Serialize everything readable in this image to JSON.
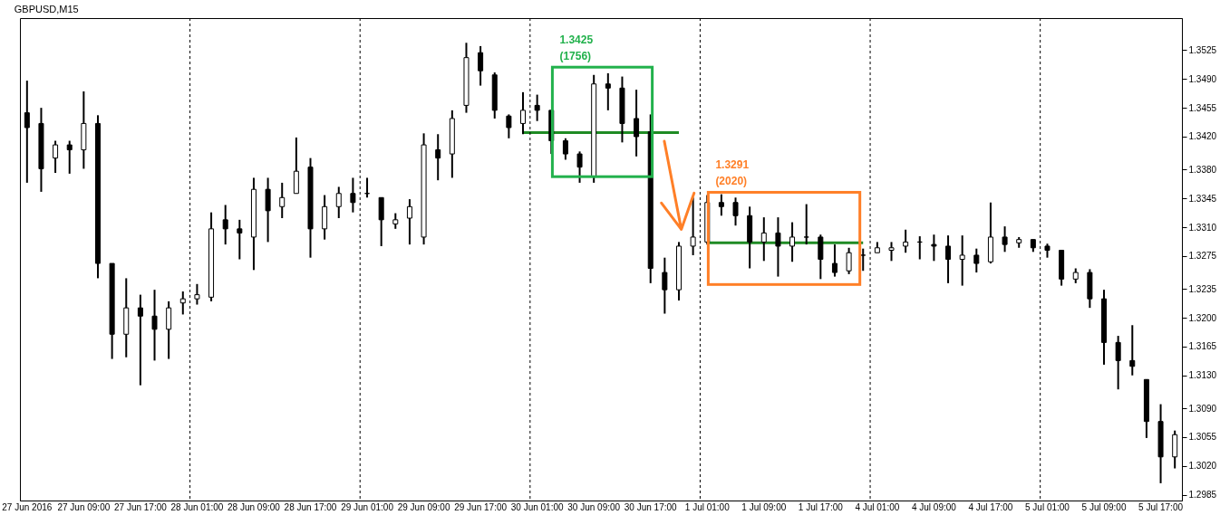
{
  "chart_data": {
    "type": "candlestick",
    "title": "GBPUSD,M15",
    "color": "#000000",
    "categories": [
      "27 Jun 2016",
      null,
      null,
      null,
      "27 Jun 09:00",
      null,
      null,
      null,
      "27 Jun 17:00",
      null,
      null,
      null,
      "28 Jun 01:00",
      null,
      null,
      null,
      "28 Jun 09:00",
      null,
      null,
      null,
      "28 Jun 17:00",
      null,
      null,
      null,
      "29 Jun 01:00",
      null,
      null,
      null,
      "29 Jun 09:00",
      null,
      null,
      null,
      "29 Jun 17:00",
      null,
      null,
      null,
      "30 Jun 01:00",
      null,
      null,
      null,
      "30 Jun 09:00",
      null,
      null,
      null,
      "30 Jun 17:00",
      null,
      null,
      null,
      "1 Jul 01:00",
      null,
      null,
      null,
      "1 Jul 09:00",
      null,
      null,
      null,
      "1 Jul 17:00",
      null,
      null,
      null,
      "4 Jul 01:00",
      null,
      null,
      null,
      "4 Jul 09:00",
      null,
      null,
      null,
      "4 Jul 17:00",
      null,
      null,
      null,
      "5 Jul 01:00",
      null,
      null,
      null,
      "5 Jul 09:00",
      null,
      null,
      null,
      "5 Jul 17:00",
      null
    ],
    "ohlc": [
      [
        1.3449,
        1.3488,
        1.3364,
        1.3431
      ],
      [
        1.3436,
        1.3455,
        1.3353,
        1.3381
      ],
      [
        1.3394,
        1.3415,
        1.3376,
        1.341
      ],
      [
        1.341,
        1.3415,
        1.3375,
        1.3404
      ],
      [
        1.3404,
        1.3475,
        1.3381,
        1.3436
      ],
      [
        1.3436,
        1.3446,
        1.3248,
        1.3266
      ],
      [
        1.3266,
        1.3266,
        1.315,
        1.318
      ],
      [
        1.318,
        1.3248,
        1.3152,
        1.3212
      ],
      [
        1.3212,
        1.3228,
        1.3118,
        1.3202
      ],
      [
        1.3202,
        1.3234,
        1.3148,
        1.3186
      ],
      [
        1.3186,
        1.322,
        1.315,
        1.3212
      ],
      [
        1.3218,
        1.3232,
        1.3204,
        1.3223
      ],
      [
        1.3223,
        1.3241,
        1.3216,
        1.3228
      ],
      [
        1.3225,
        1.3328,
        1.322,
        1.3308
      ],
      [
        1.3319,
        1.3337,
        1.3289,
        1.3308
      ],
      [
        1.3308,
        1.3319,
        1.3271,
        1.3303
      ],
      [
        1.3298,
        1.337,
        1.3258,
        1.3356
      ],
      [
        1.3356,
        1.337,
        1.3292,
        1.333
      ],
      [
        1.3335,
        1.3364,
        1.3321,
        1.3346
      ],
      [
        1.3351,
        1.3419,
        1.3351,
        1.3378
      ],
      [
        1.3383,
        1.3394,
        1.3273,
        1.3308
      ],
      [
        1.3308,
        1.3349,
        1.3295,
        1.3335
      ],
      [
        1.3335,
        1.3359,
        1.3321,
        1.3351
      ],
      [
        1.3351,
        1.337,
        1.3328,
        1.334
      ],
      [
        1.3351,
        1.337,
        1.3346,
        1.3351
      ],
      [
        1.3346,
        1.3346,
        1.3287,
        1.3319
      ],
      [
        1.3314,
        1.3327,
        1.3308,
        1.3319
      ],
      [
        1.3321,
        1.3344,
        1.3289,
        1.3335
      ],
      [
        1.3298,
        1.3424,
        1.3289,
        1.341
      ],
      [
        1.3404,
        1.3423,
        1.3367,
        1.3394
      ],
      [
        1.3399,
        1.3452,
        1.337,
        1.3442
      ],
      [
        1.3458,
        1.3534,
        1.3449,
        1.3516
      ],
      [
        1.3522,
        1.353,
        1.3482,
        1.35
      ],
      [
        1.3495,
        1.3498,
        1.3442,
        1.3452
      ],
      [
        1.3445,
        1.3447,
        1.3418,
        1.3431
      ],
      [
        1.3436,
        1.3474,
        1.3423,
        1.3452
      ],
      [
        1.3458,
        1.3471,
        1.3439,
        1.3452
      ],
      [
        1.3452,
        1.3452,
        1.3399,
        1.3415
      ],
      [
        1.3415,
        1.3418,
        1.3392,
        1.3399
      ],
      [
        1.3399,
        1.3402,
        1.3364,
        1.3383
      ],
      [
        1.3372,
        1.3495,
        1.3364,
        1.3484
      ],
      [
        1.3484,
        1.3497,
        1.3452,
        1.3479
      ],
      [
        1.3479,
        1.3493,
        1.3413,
        1.3436
      ],
      [
        1.3442,
        1.3477,
        1.3396,
        1.342
      ],
      [
        1.3426,
        1.3447,
        1.3242,
        1.326
      ],
      [
        1.3255,
        1.3273,
        1.3205,
        1.3234
      ],
      [
        1.3234,
        1.3292,
        1.3221,
        1.3287
      ],
      [
        1.3287,
        1.3346,
        1.3276,
        1.3298
      ],
      [
        1.3292,
        1.3349,
        1.3289,
        1.334
      ],
      [
        1.334,
        1.335,
        1.3324,
        1.3335
      ],
      [
        1.334,
        1.3346,
        1.3312,
        1.3324
      ],
      [
        1.3324,
        1.3335,
        1.326,
        1.3292
      ],
      [
        1.3292,
        1.3322,
        1.3269,
        1.3303
      ],
      [
        1.3303,
        1.3322,
        1.325,
        1.3287
      ],
      [
        1.3287,
        1.3316,
        1.3268,
        1.3298
      ],
      [
        1.3298,
        1.3338,
        1.3289,
        1.3298
      ],
      [
        1.3298,
        1.3301,
        1.3247,
        1.3271
      ],
      [
        1.3266,
        1.3289,
        1.325,
        1.3255
      ],
      [
        1.3257,
        1.3285,
        1.3253,
        1.3279
      ],
      [
        1.3276,
        1.3284,
        1.3257,
        1.3276
      ],
      [
        1.3279,
        1.3292,
        1.3279,
        1.3285
      ],
      [
        1.3282,
        1.3292,
        1.3269,
        1.3285
      ],
      [
        1.3287,
        1.3307,
        1.3279,
        1.3292
      ],
      [
        1.3292,
        1.3299,
        1.3271,
        1.3292
      ],
      [
        1.3289,
        1.3301,
        1.3269,
        1.3287
      ],
      [
        1.3287,
        1.33,
        1.3242,
        1.3271
      ],
      [
        1.3271,
        1.33,
        1.3239,
        1.3276
      ],
      [
        1.3276,
        1.3284,
        1.3255,
        1.3266
      ],
      [
        1.3268,
        1.334,
        1.3266,
        1.3298
      ],
      [
        1.3298,
        1.3311,
        1.328,
        1.3289
      ],
      [
        1.3291,
        1.3298,
        1.3285,
        1.3295
      ],
      [
        1.3295,
        1.3295,
        1.328,
        1.3285
      ],
      [
        1.3287,
        1.329,
        1.3273,
        1.3282
      ],
      [
        1.3282,
        1.3282,
        1.3239,
        1.3247
      ],
      [
        1.3247,
        1.326,
        1.3242,
        1.3255
      ],
      [
        1.3255,
        1.3259,
        1.3212,
        1.3223
      ],
      [
        1.3223,
        1.3234,
        1.3143,
        1.317
      ],
      [
        1.317,
        1.3178,
        1.3113,
        1.3148
      ],
      [
        1.3148,
        1.3191,
        1.313,
        1.3141
      ],
      [
        1.3125,
        1.3125,
        1.3054,
        1.3074
      ],
      [
        1.3074,
        1.3095,
        1.2999,
        1.3031
      ],
      [
        1.3031,
        1.3063,
        1.3017,
        1.3058
      ]
    ],
    "series": [
      {
        "type": "line",
        "color": "#1f8b24",
        "values": [
          null,
          null,
          null,
          null,
          null,
          null,
          null,
          null,
          null,
          null,
          null,
          null,
          null,
          null,
          null,
          null,
          null,
          null,
          null,
          null,
          null,
          null,
          null,
          null,
          null,
          null,
          null,
          null,
          null,
          null,
          null,
          null,
          null,
          null,
          null,
          1.3425,
          1.3425,
          1.3425,
          1.3425,
          1.3425,
          1.3425,
          1.3425,
          1.3425,
          1.3425,
          1.3425,
          1.3425,
          1.3425,
          null,
          null,
          null,
          null,
          null,
          null,
          null,
          null,
          null,
          null,
          null,
          null,
          null,
          null,
          null,
          null,
          null,
          null,
          null,
          null,
          null,
          null,
          null,
          null,
          null,
          null,
          null,
          null,
          null,
          null,
          null,
          null,
          null,
          null,
          null
        ]
      },
      {
        "type": "line",
        "color": "#1f8b24",
        "values": [
          null,
          null,
          null,
          null,
          null,
          null,
          null,
          null,
          null,
          null,
          null,
          null,
          null,
          null,
          null,
          null,
          null,
          null,
          null,
          null,
          null,
          null,
          null,
          null,
          null,
          null,
          null,
          null,
          null,
          null,
          null,
          null,
          null,
          null,
          null,
          null,
          null,
          null,
          null,
          null,
          null,
          null,
          null,
          null,
          null,
          null,
          null,
          null,
          1.3291,
          1.3291,
          1.3291,
          1.3291,
          1.3291,
          1.3291,
          1.3291,
          1.3291,
          1.3291,
          1.3291,
          1.3291,
          1.3291,
          null,
          null,
          null,
          null,
          null,
          null,
          null,
          null,
          null,
          null,
          null,
          null,
          null,
          null,
          null,
          null,
          null,
          null,
          null,
          null,
          null,
          null
        ]
      }
    ],
    "ref_lines": [
      {
        "axis": "x",
        "value": "28 Jun 01:00",
        "color": "#000000",
        "line_style": "dashed"
      },
      {
        "axis": "x",
        "value": "29 Jun 01:00",
        "color": "#000000",
        "line_style": "dashed"
      },
      {
        "axis": "x",
        "value": "30 Jun 01:00",
        "color": "#000000",
        "line_style": "dashed"
      },
      {
        "axis": "x",
        "value": "1 Jul 01:00",
        "color": "#000000",
        "line_style": "dashed"
      },
      {
        "axis": "x",
        "value": "4 Jul 01:00",
        "color": "#000000",
        "line_style": "dashed"
      },
      {
        "axis": "x",
        "value": "5 Jul 01:00",
        "color": "#000000",
        "line_style": "dashed"
      }
    ],
    "annotations": [
      "1.3425\n(1756)",
      "1.3291\n(2020)"
    ],
    "ylim": [
      1.2978,
      1.3564
    ],
    "yticks": [
      1.2985,
      {
        "value": 1.302,
        "label": "1.3020"
      },
      1.3055,
      {
        "value": 1.309,
        "label": "1.3090"
      },
      {
        "value": 1.313,
        "label": "1.3130"
      },
      1.3165,
      {
        "value": 1.32,
        "label": "1.3200"
      },
      1.3235,
      1.3275,
      {
        "value": 1.331,
        "label": "1.3310"
      },
      1.3345,
      {
        "value": 1.338,
        "label": "1.3380"
      },
      {
        "value": 1.342,
        "label": "1.3420"
      },
      1.3455,
      {
        "value": 1.349,
        "label": "1.3490"
      },
      1.3525
    ]
  }
}
